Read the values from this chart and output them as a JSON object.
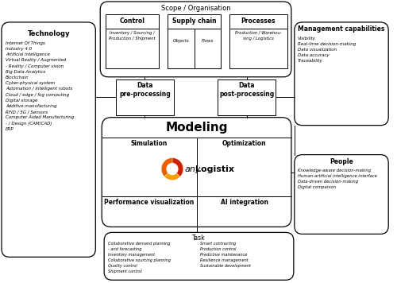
{
  "bg_color": "#ffffff",
  "scope_label": "Scope / Organisation",
  "control_label": "Control",
  "control_sub": "Inventory / Sourcing /\nProduction / Shipment",
  "supply_chain_label": "Supply chain",
  "supply_chain_sub1": "Objects",
  "supply_chain_sub2": "Flows",
  "processes_label": "Processes",
  "processes_sub": "Production / Warehou-\nsing / Logistics",
  "data_pre_label": "Data\npre-processing",
  "data_post_label": "Data\npost-processing",
  "modeling_label": "Modeling",
  "simulation_label": "Simulation",
  "optimization_label": "Optimization",
  "perf_vis_label": "Performance visualization",
  "ai_int_label": "AI integration",
  "anylogistix_text": "anyLogistix",
  "task_label": "Task",
  "task_left": "Collaborative demand planning\n- and forecasting\nInventory management\nCollaborative sourcing planning\nQuality control\nShipment control",
  "task_right": "Smart contracting\nProduction control\nPredictive maintenance\nResilience management\nSustainable development",
  "tech_label": "Technology",
  "tech_items": "Internet Of Things\nIndustry 4.0\nArtificial intelligence\nVirtual Reality / Augmented\n- Reality / Computer vision\nBig Data Analytics\nBlockchain\nCyber-physical system\nAutomation / Intelligent robots\nCloud / edge / fog computing\nDigital storage\nAdditive manufacturing\nRFID / 5G / Sensors\nComputer Aided Manufacturing\n- / Design (CAM/CAD)\nERP",
  "mgmt_label": "Management capabilities",
  "mgmt_items": "Visibility\nReal-time decision-making\nData visualization\nData accuracy\nTraceability",
  "people_label": "People",
  "people_items": "Knowledge-aware decision-making\nHuman-artificial intelligence interface\nData-driven decision-making\nDigital companion",
  "logo_color1": "#D4380D",
  "logo_color2": "#FA8C16",
  "logo_color3": "#FADB14"
}
